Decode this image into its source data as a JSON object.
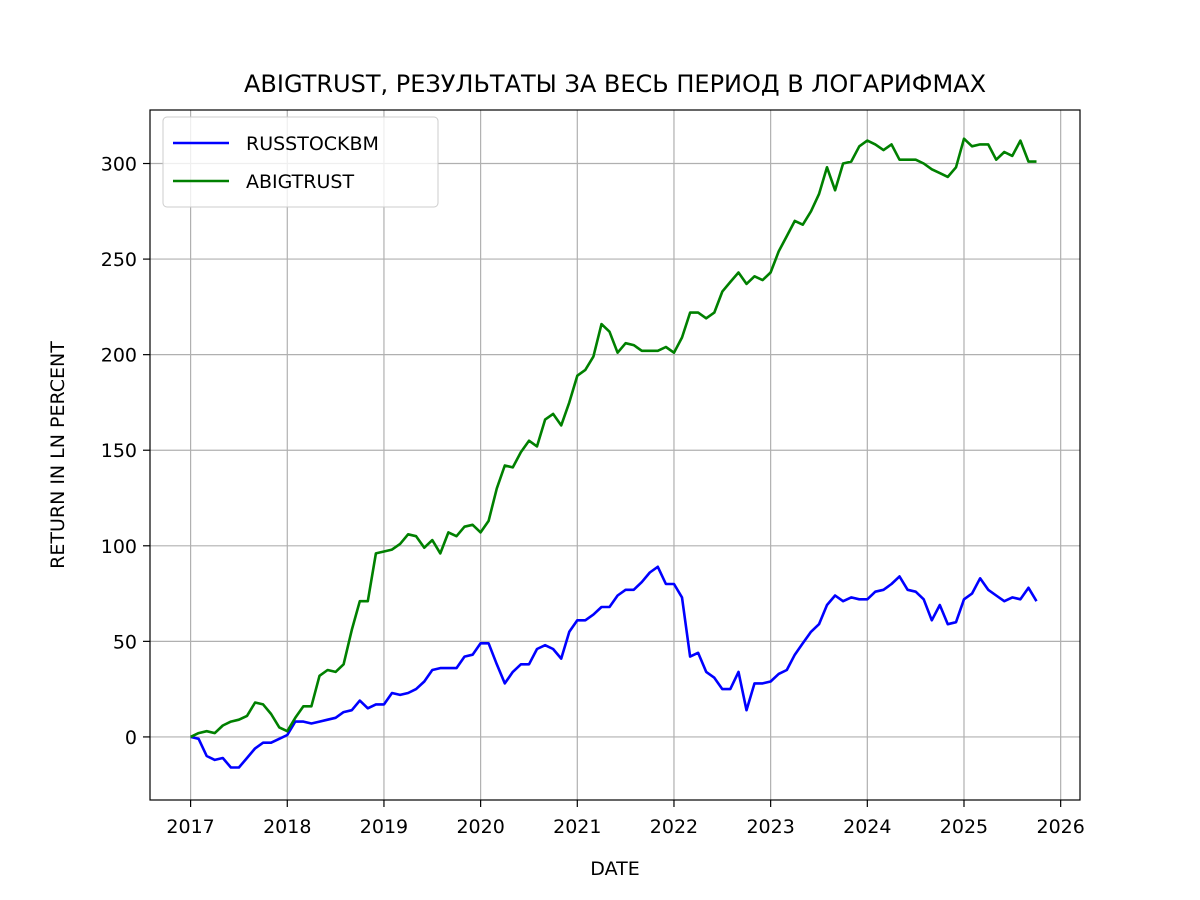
{
  "chart_data": {
    "type": "line",
    "title": "ABIGTRUST, РЕЗУЛЬТАТЫ ЗА ВЕСЬ ПЕРИОД В ЛОГАРИФМАХ",
    "xlabel": "DATE",
    "ylabel": "RETURN IN LN PERCENT",
    "xlim": [
      2016.58,
      2026.2
    ],
    "ylim": [
      -33,
      328
    ],
    "xticks": [
      "2017",
      "2018",
      "2019",
      "2020",
      "2021",
      "2022",
      "2023",
      "2024",
      "2025",
      "2026"
    ],
    "yticks": [
      "0",
      "50",
      "100",
      "150",
      "200",
      "250",
      "300"
    ],
    "grid": true,
    "legend": "upper-left",
    "x": [
      2017.0,
      2017.083,
      2017.167,
      2017.25,
      2017.333,
      2017.417,
      2017.5,
      2017.583,
      2017.667,
      2017.75,
      2017.833,
      2017.917,
      2018.0,
      2018.083,
      2018.167,
      2018.25,
      2018.333,
      2018.417,
      2018.5,
      2018.583,
      2018.667,
      2018.75,
      2018.833,
      2018.917,
      2019.0,
      2019.083,
      2019.167,
      2019.25,
      2019.333,
      2019.417,
      2019.5,
      2019.583,
      2019.667,
      2019.75,
      2019.833,
      2019.917,
      2020.0,
      2020.083,
      2020.167,
      2020.25,
      2020.333,
      2020.417,
      2020.5,
      2020.583,
      2020.667,
      2020.75,
      2020.833,
      2020.917,
      2021.0,
      2021.083,
      2021.167,
      2021.25,
      2021.333,
      2021.417,
      2021.5,
      2021.583,
      2021.667,
      2021.75,
      2021.833,
      2021.917,
      2022.0,
      2022.083,
      2022.167,
      2022.25,
      2022.333,
      2022.417,
      2022.5,
      2022.583,
      2022.667,
      2022.75,
      2022.833,
      2022.917,
      2023.0,
      2023.083,
      2023.167,
      2023.25,
      2023.333,
      2023.417,
      2023.5,
      2023.583,
      2023.667,
      2023.75,
      2023.833,
      2023.917,
      2024.0,
      2024.083,
      2024.167,
      2024.25,
      2024.333,
      2024.417,
      2024.5,
      2024.583,
      2024.667,
      2024.75,
      2024.833,
      2024.917,
      2025.0,
      2025.083,
      2025.167,
      2025.25,
      2025.333,
      2025.417,
      2025.5,
      2025.583,
      2025.667,
      2025.75
    ],
    "series": [
      {
        "name": "RUSSTOCKBM",
        "color": "#0000ff",
        "values": [
          0,
          -1,
          -10,
          -12,
          -11,
          -16,
          -16,
          -11,
          -6,
          -3,
          -3,
          -1,
          1,
          8,
          8,
          7,
          8,
          9,
          10,
          13,
          14,
          19,
          15,
          17,
          17,
          23,
          22,
          23,
          25,
          29,
          35,
          36,
          36,
          36,
          42,
          43,
          49,
          49,
          38,
          28,
          34,
          38,
          38,
          46,
          48,
          46,
          41,
          55,
          61,
          61,
          64,
          68,
          68,
          74,
          77,
          77,
          81,
          86,
          89,
          80,
          80,
          73,
          42,
          44,
          34,
          31,
          25,
          25,
          34,
          14,
          28,
          28,
          29,
          33,
          35,
          43,
          49,
          55,
          59,
          69,
          74,
          71,
          73,
          72,
          72,
          76,
          77,
          80,
          84,
          77,
          76,
          72,
          61,
          69,
          59,
          60,
          72,
          75,
          83,
          77,
          74,
          71,
          73,
          72,
          78,
          71
        ]
      },
      {
        "name": "ABIGTRUST",
        "color": "#008000",
        "values": [
          0,
          2,
          3,
          2,
          6,
          8,
          9,
          11,
          18,
          17,
          12,
          5,
          3,
          10,
          16,
          16,
          32,
          35,
          34,
          38,
          56,
          71,
          71,
          96,
          97,
          98,
          101,
          106,
          105,
          99,
          103,
          96,
          107,
          105,
          110,
          111,
          107,
          113,
          130,
          142,
          141,
          149,
          155,
          152,
          166,
          169,
          163,
          175,
          189,
          192,
          199,
          216,
          212,
          201,
          206,
          205,
          202,
          202,
          202,
          204,
          201,
          209,
          222,
          222,
          219,
          222,
          233,
          238,
          243,
          237,
          241,
          239,
          243,
          254,
          262,
          270,
          268,
          275,
          284,
          298,
          286,
          300,
          301,
          309,
          312,
          310,
          307,
          310,
          302,
          302,
          302,
          300,
          297,
          295,
          293,
          298,
          313,
          309,
          310,
          310,
          302,
          306,
          304,
          312,
          301,
          301
        ]
      }
    ]
  }
}
